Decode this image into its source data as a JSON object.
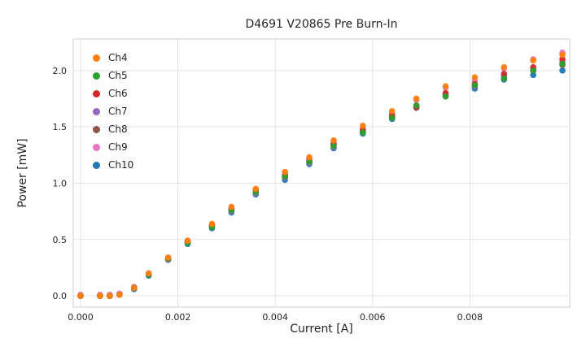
{
  "chart_data": {
    "type": "scatter",
    "title": "D4691 V20865 Pre Burn-In",
    "xlabel": "Current [A]",
    "ylabel": "Power [mW]",
    "xlim": [
      -0.00015,
      0.01005
    ],
    "ylim": [
      -0.1,
      2.28
    ],
    "xticks": [
      0.0,
      0.002,
      0.004,
      0.006,
      0.008
    ],
    "xtick_labels": [
      "0.000",
      "0.002",
      "0.004",
      "0.006",
      "0.008"
    ],
    "yticks": [
      0.0,
      0.5,
      1.0,
      1.5,
      2.0
    ],
    "ytick_labels": [
      "0.0",
      "0.5",
      "1.0",
      "1.5",
      "2.0"
    ],
    "grid": true,
    "grid_color": "#e3e3e3",
    "border_color": "#cfcfcf",
    "legend_position": "upper left",
    "marker": "circle",
    "marker_radius": 3.8,
    "x": [
      0.0,
      0.0004,
      0.0006,
      0.0008,
      0.0011,
      0.0014,
      0.0018,
      0.0022,
      0.0027,
      0.0031,
      0.0036,
      0.0042,
      0.0047,
      0.0052,
      0.0058,
      0.0064,
      0.0069,
      0.0075,
      0.0081,
      0.0087,
      0.0093,
      0.0099
    ],
    "series": [
      {
        "name": "Ch4",
        "color": "#ff7f0e",
        "values": [
          0.0,
          0.0,
          0.0,
          0.01,
          0.07,
          0.2,
          0.34,
          0.49,
          0.64,
          0.79,
          0.95,
          1.1,
          1.23,
          1.38,
          1.51,
          1.64,
          1.75,
          1.86,
          1.94,
          2.03,
          2.09,
          2.14
        ]
      },
      {
        "name": "Ch5",
        "color": "#2ca02c",
        "values": [
          0.0,
          0.0,
          0.0,
          0.01,
          0.07,
          0.19,
          0.33,
          0.47,
          0.61,
          0.76,
          0.92,
          1.06,
          1.19,
          1.33,
          1.45,
          1.58,
          1.69,
          1.77,
          1.87,
          1.93,
          2.0,
          2.06
        ]
      },
      {
        "name": "Ch6",
        "color": "#d62728",
        "values": [
          0.0,
          0.0,
          0.0,
          0.01,
          0.07,
          0.19,
          0.33,
          0.48,
          0.62,
          0.77,
          0.93,
          1.07,
          1.2,
          1.35,
          1.47,
          1.6,
          1.68,
          1.8,
          1.88,
          1.97,
          2.03,
          2.1
        ]
      },
      {
        "name": "Ch7",
        "color": "#9467bd",
        "values": [
          0.0,
          0.0,
          0.0,
          0.01,
          0.07,
          0.19,
          0.32,
          0.47,
          0.61,
          0.75,
          0.91,
          1.05,
          1.18,
          1.32,
          1.45,
          1.58,
          1.69,
          1.78,
          1.86,
          1.95,
          2.01,
          2.07
        ]
      },
      {
        "name": "Ch8",
        "color": "#8c564b",
        "values": [
          0.0,
          0.0,
          0.0,
          0.01,
          0.07,
          0.19,
          0.33,
          0.48,
          0.62,
          0.76,
          0.92,
          1.06,
          1.19,
          1.34,
          1.46,
          1.59,
          1.67,
          1.79,
          1.86,
          1.93,
          2.0,
          2.05
        ]
      },
      {
        "name": "Ch9",
        "color": "#e377c2",
        "values": [
          0.01,
          0.01,
          0.01,
          0.02,
          0.08,
          0.2,
          0.34,
          0.49,
          0.63,
          0.78,
          0.94,
          1.09,
          1.22,
          1.37,
          1.49,
          1.62,
          1.74,
          1.85,
          1.91,
          2.02,
          2.1,
          2.16
        ]
      },
      {
        "name": "Ch10",
        "color": "#1f77b4",
        "values": [
          0.0,
          0.0,
          0.0,
          0.01,
          0.06,
          0.18,
          0.32,
          0.46,
          0.6,
          0.74,
          0.9,
          1.03,
          1.17,
          1.31,
          1.44,
          1.57,
          1.67,
          1.77,
          1.84,
          1.92,
          1.96,
          2.0
        ]
      }
    ]
  }
}
